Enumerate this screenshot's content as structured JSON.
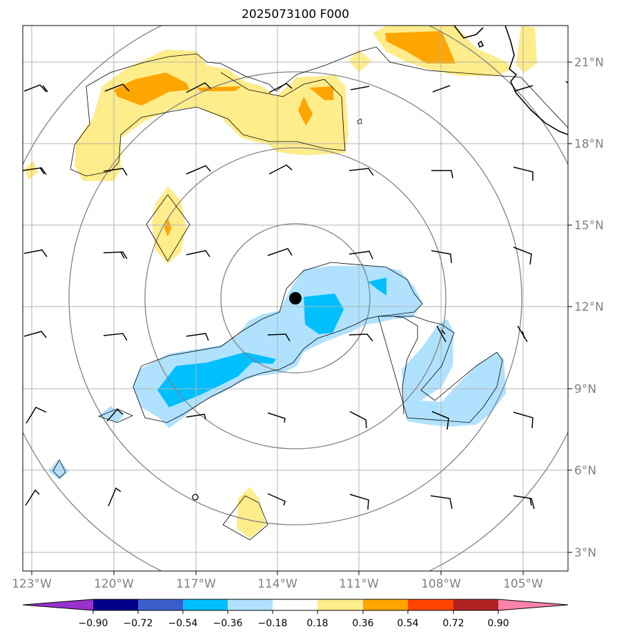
{
  "title": "2025073100 F000",
  "lon_labels": [
    "123°W",
    "120°W",
    "117°W",
    "114°W",
    "111°W",
    "108°W",
    "105°W"
  ],
  "lat_labels": [
    "21°N",
    "18°N",
    "15°N",
    "12°N",
    "9°N",
    "6°N",
    "3°N"
  ],
  "colorbar": {
    "labels": [
      "−0.90",
      "−0.72",
      "−0.54",
      "−0.36",
      "−0.18",
      "0.18",
      "0.36",
      "0.54",
      "0.72",
      "0.90"
    ],
    "colors": [
      "#9932cc",
      "#00008b",
      "#3a5fcd",
      "#00bfff",
      "#b0e2ff",
      "#ffffff",
      "#ffec8b",
      "#ffa500",
      "#ff4500",
      "#b22222",
      "#ff82ab"
    ]
  },
  "fill_colors": {
    "light_blue": "#b0e2ff",
    "blue": "#00bfff",
    "yellow": "#ffec8b",
    "orange": "#ffa500"
  },
  "storm_center_marker": "filled-black-circle"
}
